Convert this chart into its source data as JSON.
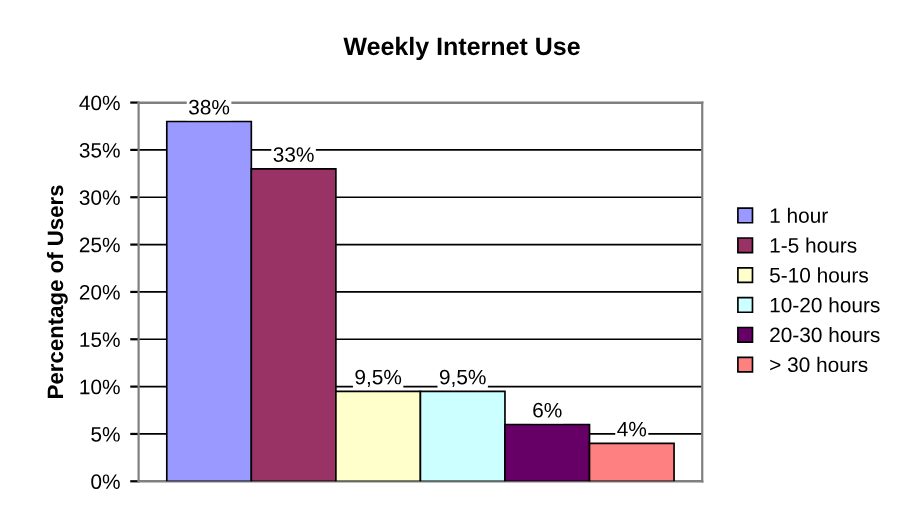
{
  "chart_data": {
    "type": "bar",
    "title": "Weekly Internet Use",
    "ylabel": "Percentage of Users",
    "categories": [
      null
    ],
    "series": [
      {
        "name": "1 hour",
        "color": "#9999ff",
        "values": [
          38
        ],
        "value_labels": [
          "38%"
        ]
      },
      {
        "name": "1-5 hours",
        "color": "#993366",
        "values": [
          33
        ],
        "value_labels": [
          "33%"
        ]
      },
      {
        "name": "5-10 hours",
        "color": "#ffffcc",
        "values": [
          9.5
        ],
        "value_labels": [
          "9,5%"
        ]
      },
      {
        "name": "10-20 hours",
        "color": "#ccffff",
        "values": [
          9.5
        ],
        "value_labels": [
          "9,5%"
        ]
      },
      {
        "name": "20-30 hours",
        "color": "#660066",
        "values": [
          6
        ],
        "value_labels": [
          "6%"
        ]
      },
      {
        "name": "> 30 hours",
        "color": "#ff8080",
        "values": [
          4
        ],
        "value_labels": [
          "4%"
        ]
      }
    ],
    "ylim": [
      0,
      40
    ],
    "yticks": [
      {
        "value": 0,
        "label": "0%"
      },
      {
        "value": 5,
        "label": "5%"
      },
      {
        "value": 10,
        "label": "10%"
      },
      {
        "value": 15,
        "label": "15%"
      },
      {
        "value": 20,
        "label": "20%"
      },
      {
        "value": 25,
        "label": "25%"
      },
      {
        "value": 30,
        "label": "30%"
      },
      {
        "value": 35,
        "label": "35%"
      },
      {
        "value": 40,
        "label": "40%"
      }
    ],
    "grid": "y",
    "legend": "right"
  }
}
